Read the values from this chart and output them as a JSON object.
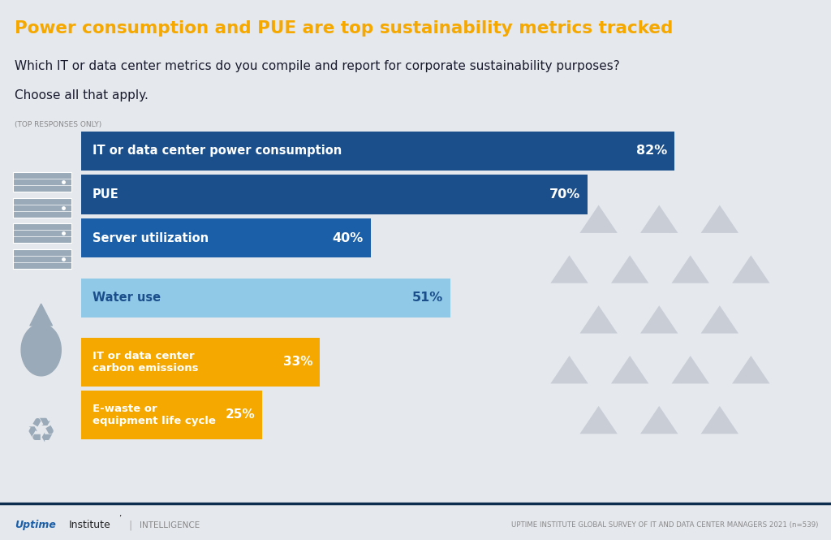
{
  "title": "Power consumption and PUE are top sustainability metrics tracked",
  "question_line1": "Which IT or data center metrics do you compile and report for corporate sustainability purposes?",
  "question_line2": "Choose all that apply.",
  "question_sub": "(TOP RESPONSES ONLY)",
  "footer_right": "UPTIME INSTITUTE GLOBAL SURVEY OF IT AND DATA CENTER MANAGERS 2021 (n=539)",
  "bars": [
    {
      "label": "IT or data center power consumption",
      "value": 82,
      "color": "#1b4f8c",
      "text_color": "#ffffff",
      "multiline": false
    },
    {
      "label": "PUE",
      "value": 70,
      "color": "#1b4f8c",
      "text_color": "#ffffff",
      "multiline": false
    },
    {
      "label": "Server utilization",
      "value": 40,
      "color": "#1b5fa8",
      "text_color": "#ffffff",
      "multiline": false
    },
    {
      "label": "Water use",
      "value": 51,
      "color": "#90c8e8",
      "text_color": "#1b4f8c",
      "multiline": false
    },
    {
      "label": "IT or data center\ncarbon emissions",
      "value": 33,
      "color": "#f5a800",
      "text_color": "#ffffff",
      "multiline": true
    },
    {
      "label": "E-waste or\nequipment life cycle",
      "value": 25,
      "color": "#f5a800",
      "text_color": "#ffffff",
      "multiline": true
    }
  ],
  "bg_color": "#e5e8ed",
  "header_bg": "#0d2d4e",
  "title_color": "#f5a800",
  "max_value": 100,
  "footer_blue": "#1b5fa8",
  "icon_color": "#9aaab8",
  "tri_color": "#c8cdd6"
}
